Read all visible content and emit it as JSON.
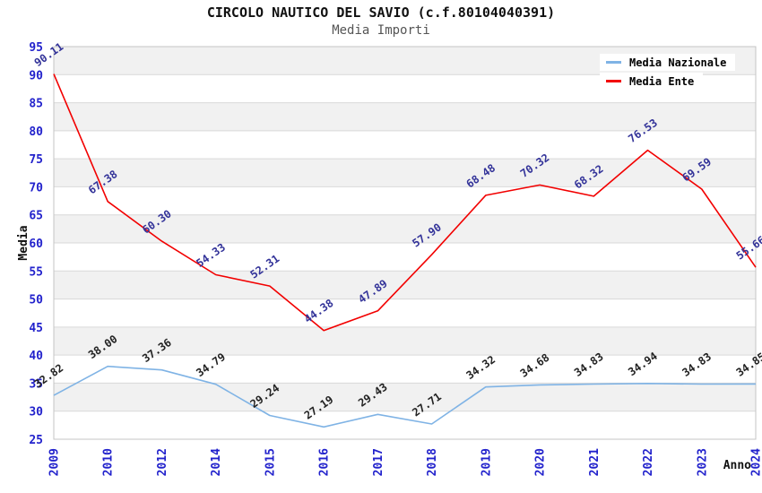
{
  "title": "CIRCOLO NAUTICO DEL SAVIO (c.f.80104040391)",
  "subtitle": "Media Importi",
  "chart_data": {
    "type": "line",
    "title": "CIRCOLO NAUTICO DEL SAVIO (c.f.80104040391)",
    "subtitle": "Media Importi",
    "xlabel": "Anno",
    "ylabel": "Media",
    "categories": [
      "2009",
      "2010",
      "2012",
      "2014",
      "2015",
      "2016",
      "2017",
      "2018",
      "2019",
      "2020",
      "2021",
      "2022",
      "2023",
      "2024"
    ],
    "series": [
      {
        "name": "Media Nazionale",
        "color": "#7fb3e5",
        "label_color": "#222222",
        "values": [
          "32.82",
          "38.00",
          "37.36",
          "34.79",
          "29.24",
          "27.19",
          "29.43",
          "27.71",
          "34.32",
          "34.68",
          "34.83",
          "34.94",
          "34.83",
          "34.85"
        ]
      },
      {
        "name": "Media Ente",
        "color": "#f20000",
        "label_color": "#333399",
        "values": [
          "90.11",
          "67.38",
          "60.30",
          "54.33",
          "52.31",
          "44.38",
          "47.89",
          "57.90",
          "68.48",
          "70.32",
          "68.32",
          "76.53",
          "69.59",
          "55.66"
        ]
      }
    ],
    "ylim": [
      25,
      95
    ],
    "ytick_step": 5,
    "grid": true,
    "legend_position": "top-right",
    "axis_tick_color": "#2222cc",
    "grid_color": "#d9d9d9",
    "border_color": "#c4c4c4",
    "band_colors": [
      "#f1f1f1",
      "#ffffff"
    ],
    "plot_bg": "#ffffff"
  }
}
